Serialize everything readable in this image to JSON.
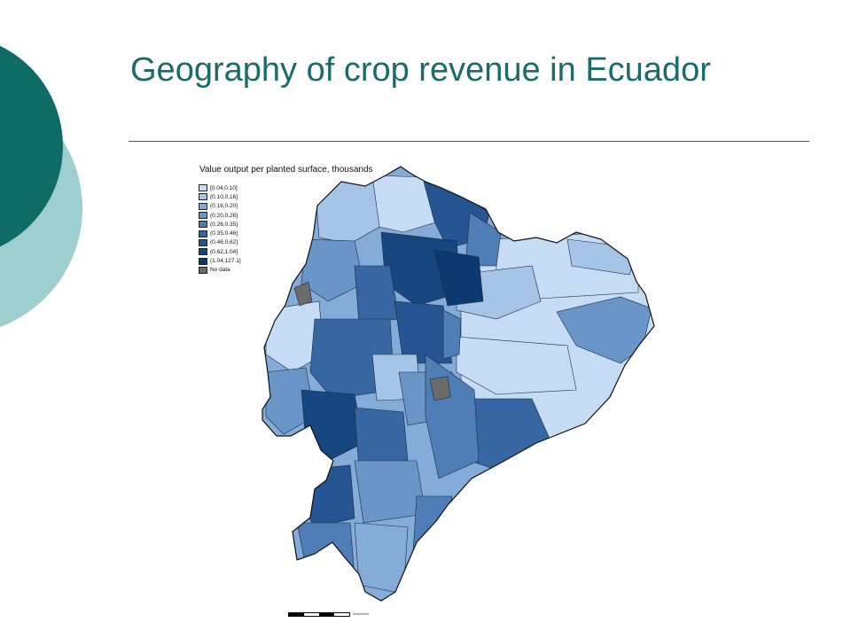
{
  "slide": {
    "title": "Geography of crop revenue in Ecuador"
  },
  "map": {
    "caption": "Value output per planted surface, thousands",
    "legend": [
      {
        "label": "[0.04,0.10]",
        "color": "#c6dcf4"
      },
      {
        "label": "(0.10,0.16]",
        "color": "#a5c4e8"
      },
      {
        "label": "(0.16,0.20]",
        "color": "#85abd9"
      },
      {
        "label": "(0.20,0.26]",
        "color": "#6a95c8"
      },
      {
        "label": "(0.26,0.35]",
        "color": "#4f7db5"
      },
      {
        "label": "(0.35,0.46]",
        "color": "#3767a3"
      },
      {
        "label": "(0.46,0.62]",
        "color": "#255592"
      },
      {
        "label": "(0.62,1.04]",
        "color": "#164680"
      },
      {
        "label": "(1.04,127.1]",
        "color": "#0c3a70"
      },
      {
        "label": "No data",
        "color": "#6b6b6b"
      }
    ],
    "scalebar_text": "kilometers"
  }
}
